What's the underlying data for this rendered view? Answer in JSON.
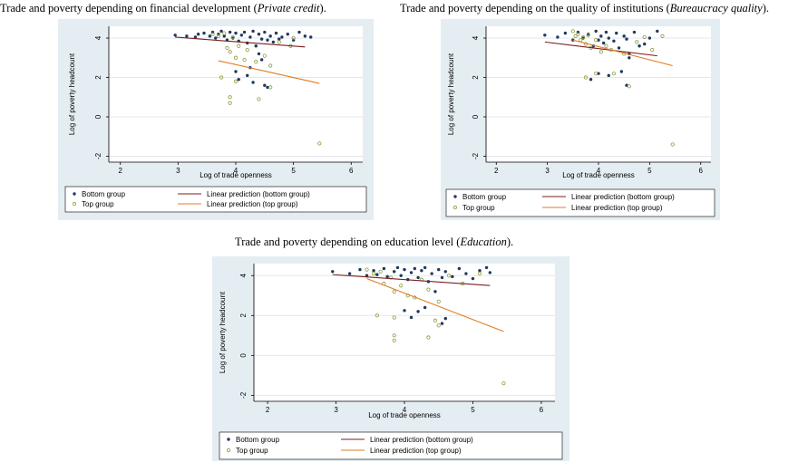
{
  "captions": [
    {
      "prefix": "Trade and poverty depending on financial development (",
      "italic": "Private credit",
      "suffix": ")."
    },
    {
      "prefix": "Trade and poverty depending on the quality of institutions (",
      "italic": "Bureaucracy quality",
      "suffix": ")."
    },
    {
      "prefix": "Trade and poverty depending on education level (",
      "italic": "Education",
      "suffix": ")."
    }
  ],
  "chart_data": [
    {
      "type": "scatter",
      "title": "Trade and poverty depending on financial development (Private credit).",
      "xlabel": "Log of trade openness",
      "ylabel": "Log of poverty headcount",
      "xlim": [
        1.8,
        6.2
      ],
      "ylim": [
        -2.3,
        4.6
      ],
      "xticks": [
        2,
        3,
        4,
        5,
        6
      ],
      "yticks": [
        -2,
        0,
        2,
        4
      ],
      "grid": "horizontal",
      "legend_position": "bottom",
      "legend": [
        "Bottom group",
        "Linear prediction (bottom group)",
        "Top group",
        "Linear prediction (top group)"
      ],
      "series": [
        {
          "name": "Bottom group",
          "marker": "filled-circle",
          "color": "#1f3a5f",
          "points": [
            [
              2.95,
              4.15
            ],
            [
              3.15,
              4.1
            ],
            [
              3.3,
              4.05
            ],
            [
              3.35,
              4.2
            ],
            [
              3.45,
              4.25
            ],
            [
              3.55,
              4.1
            ],
            [
              3.6,
              4.3
            ],
            [
              3.65,
              4.0
            ],
            [
              3.7,
              4.2
            ],
            [
              3.75,
              4.35
            ],
            [
              3.8,
              4.1
            ],
            [
              3.85,
              3.9
            ],
            [
              3.9,
              4.3
            ],
            [
              3.95,
              4.0
            ],
            [
              4.0,
              4.25
            ],
            [
              4.05,
              3.85
            ],
            [
              4.1,
              4.15
            ],
            [
              4.15,
              4.3
            ],
            [
              4.2,
              3.75
            ],
            [
              4.25,
              4.05
            ],
            [
              4.3,
              4.35
            ],
            [
              4.35,
              3.6
            ],
            [
              4.4,
              4.2
            ],
            [
              4.45,
              3.95
            ],
            [
              4.5,
              4.3
            ],
            [
              4.55,
              3.9
            ],
            [
              4.6,
              4.1
            ],
            [
              4.65,
              3.8
            ],
            [
              4.7,
              4.25
            ],
            [
              4.75,
              3.95
            ],
            [
              4.8,
              4.05
            ],
            [
              4.9,
              4.2
            ],
            [
              5.0,
              3.9
            ],
            [
              5.1,
              4.3
            ],
            [
              5.2,
              4.1
            ],
            [
              5.3,
              4.05
            ],
            [
              4.0,
              2.3
            ],
            [
              4.05,
              1.9
            ],
            [
              4.2,
              2.1
            ],
            [
              4.3,
              1.75
            ],
            [
              4.5,
              1.6
            ],
            [
              4.55,
              1.5
            ],
            [
              4.25,
              2.5
            ],
            [
              4.4,
              3.2
            ],
            [
              4.45,
              2.9
            ]
          ]
        },
        {
          "name": "Top group",
          "marker": "hollow-circle",
          "color": "#8a9a3a",
          "points": [
            [
              3.6,
              4.2
            ],
            [
              3.7,
              4.1
            ],
            [
              3.8,
              4.25
            ],
            [
              3.85,
              3.5
            ],
            [
              3.9,
              3.3
            ],
            [
              3.95,
              4.05
            ],
            [
              4.0,
              3.0
            ],
            [
              4.05,
              3.6
            ],
            [
              4.15,
              2.9
            ],
            [
              4.2,
              3.4
            ],
            [
              4.35,
              2.8
            ],
            [
              4.5,
              3.1
            ],
            [
              4.6,
              2.6
            ],
            [
              4.75,
              3.8
            ],
            [
              4.95,
              3.6
            ],
            [
              5.0,
              4.0
            ],
            [
              3.75,
              2.0
            ],
            [
              3.9,
              1.0
            ],
            [
              3.9,
              0.7
            ],
            [
              4.0,
              1.8
            ],
            [
              4.4,
              0.9
            ],
            [
              4.6,
              1.5
            ],
            [
              5.45,
              -1.35
            ]
          ]
        },
        {
          "name": "Linear prediction (bottom group)",
          "type": "line",
          "color": "#7a1f1f",
          "points": [
            [
              2.95,
              4.05
            ],
            [
              5.2,
              3.55
            ]
          ]
        },
        {
          "name": "Linear prediction (top group)",
          "type": "line",
          "color": "#e07b22",
          "points": [
            [
              3.7,
              2.85
            ],
            [
              5.45,
              1.7
            ]
          ]
        }
      ]
    },
    {
      "type": "scatter",
      "title": "Trade and poverty depending on the quality of institutions (Bureaucracy quality).",
      "xlabel": "Log of trade openness",
      "ylabel": "Log of poverty headcount",
      "xlim": [
        1.8,
        6.2
      ],
      "ylim": [
        -2.3,
        4.6
      ],
      "xticks": [
        2,
        3,
        4,
        5,
        6
      ],
      "yticks": [
        -2,
        0,
        2,
        4
      ],
      "grid": "horizontal",
      "legend_position": "bottom",
      "legend": [
        "Bottom group",
        "Linear prediction (bottom group)",
        "Top group",
        "Linear prediction (top group)"
      ],
      "series": [
        {
          "name": "Bottom group",
          "marker": "filled-circle",
          "color": "#1f3a5f",
          "points": [
            [
              2.95,
              4.15
            ],
            [
              3.2,
              4.05
            ],
            [
              3.35,
              4.25
            ],
            [
              3.5,
              3.9
            ],
            [
              3.6,
              4.3
            ],
            [
              3.7,
              4.0
            ],
            [
              3.8,
              4.2
            ],
            [
              3.9,
              3.6
            ],
            [
              3.95,
              4.35
            ],
            [
              4.0,
              3.9
            ],
            [
              4.05,
              4.1
            ],
            [
              4.1,
              3.75
            ],
            [
              4.15,
              4.3
            ],
            [
              4.2,
              4.0
            ],
            [
              4.3,
              3.85
            ],
            [
              4.35,
              4.25
            ],
            [
              4.4,
              3.5
            ],
            [
              4.5,
              4.1
            ],
            [
              4.55,
              3.95
            ],
            [
              4.6,
              3.2
            ],
            [
              4.7,
              4.3
            ],
            [
              4.8,
              3.6
            ],
            [
              4.9,
              3.7
            ],
            [
              5.0,
              4.0
            ],
            [
              5.15,
              4.35
            ],
            [
              3.85,
              1.9
            ],
            [
              4.0,
              2.2
            ],
            [
              4.2,
              2.1
            ],
            [
              4.45,
              2.3
            ],
            [
              4.55,
              1.6
            ],
            [
              4.6,
              3.0
            ]
          ]
        },
        {
          "name": "Top group",
          "marker": "hollow-circle",
          "color": "#8a9a3a",
          "points": [
            [
              3.5,
              4.35
            ],
            [
              3.55,
              4.1
            ],
            [
              3.6,
              4.2
            ],
            [
              3.65,
              3.9
            ],
            [
              3.7,
              4.05
            ],
            [
              3.75,
              3.7
            ],
            [
              3.8,
              4.15
            ],
            [
              3.85,
              3.5
            ],
            [
              3.95,
              3.9
            ],
            [
              4.05,
              3.3
            ],
            [
              4.15,
              3.6
            ],
            [
              4.25,
              3.4
            ],
            [
              4.5,
              3.2
            ],
            [
              4.75,
              3.8
            ],
            [
              4.9,
              4.05
            ],
            [
              5.05,
              3.4
            ],
            [
              5.25,
              4.1
            ],
            [
              3.75,
              2.0
            ],
            [
              3.95,
              2.2
            ],
            [
              4.3,
              2.2
            ],
            [
              4.6,
              1.55
            ],
            [
              5.45,
              -1.4
            ]
          ]
        },
        {
          "name": "Linear prediction (bottom group)",
          "type": "line",
          "color": "#7a1f1f",
          "points": [
            [
              2.95,
              3.8
            ],
            [
              5.15,
              3.1
            ]
          ]
        },
        {
          "name": "Linear prediction (top group)",
          "type": "line",
          "color": "#e07b22",
          "points": [
            [
              3.5,
              3.9
            ],
            [
              5.45,
              2.6
            ]
          ]
        }
      ]
    },
    {
      "type": "scatter",
      "title": "Trade and poverty depending on education level (Education).",
      "xlabel": "Log of trade openness",
      "ylabel": "Log of poverty headcount",
      "xlim": [
        1.8,
        6.2
      ],
      "ylim": [
        -2.3,
        4.6
      ],
      "xticks": [
        2,
        3,
        4,
        5,
        6
      ],
      "yticks": [
        -2,
        0,
        2,
        4
      ],
      "grid": "horizontal",
      "legend_position": "bottom",
      "legend": [
        "Bottom group",
        "Linear prediction (bottom group)",
        "Top group",
        "Linear prediction (top group)"
      ],
      "series": [
        {
          "name": "Bottom group",
          "marker": "filled-circle",
          "color": "#1f3a5f",
          "points": [
            [
              2.95,
              4.2
            ],
            [
              3.2,
              4.1
            ],
            [
              3.35,
              4.3
            ],
            [
              3.45,
              4.0
            ],
            [
              3.55,
              4.25
            ],
            [
              3.6,
              4.05
            ],
            [
              3.7,
              4.35
            ],
            [
              3.75,
              3.95
            ],
            [
              3.85,
              4.2
            ],
            [
              3.9,
              4.4
            ],
            [
              3.95,
              4.0
            ],
            [
              4.0,
              4.3
            ],
            [
              4.05,
              3.8
            ],
            [
              4.1,
              4.15
            ],
            [
              4.15,
              4.35
            ],
            [
              4.2,
              3.9
            ],
            [
              4.25,
              4.25
            ],
            [
              4.3,
              4.4
            ],
            [
              4.35,
              3.7
            ],
            [
              4.4,
              4.1
            ],
            [
              4.45,
              3.2
            ],
            [
              4.5,
              4.3
            ],
            [
              4.55,
              3.9
            ],
            [
              4.6,
              4.2
            ],
            [
              4.7,
              3.95
            ],
            [
              4.8,
              4.35
            ],
            [
              4.9,
              4.1
            ],
            [
              5.0,
              3.85
            ],
            [
              5.1,
              4.25
            ],
            [
              5.2,
              4.4
            ],
            [
              5.25,
              4.15
            ],
            [
              4.0,
              2.25
            ],
            [
              4.1,
              1.9
            ],
            [
              4.2,
              2.2
            ],
            [
              4.3,
              2.4
            ],
            [
              4.55,
              1.6
            ],
            [
              4.6,
              1.85
            ]
          ]
        },
        {
          "name": "Top group",
          "marker": "hollow-circle",
          "color": "#8a9a3a",
          "points": [
            [
              3.45,
              4.3
            ],
            [
              3.55,
              4.1
            ],
            [
              3.65,
              4.2
            ],
            [
              3.7,
              3.6
            ],
            [
              3.8,
              3.9
            ],
            [
              3.85,
              3.2
            ],
            [
              3.95,
              3.5
            ],
            [
              4.05,
              3.0
            ],
            [
              4.15,
              2.9
            ],
            [
              4.25,
              3.8
            ],
            [
              4.35,
              3.3
            ],
            [
              4.5,
              2.7
            ],
            [
              4.65,
              4.0
            ],
            [
              4.85,
              3.6
            ],
            [
              5.1,
              4.1
            ],
            [
              3.6,
              2.0
            ],
            [
              3.85,
              1.9
            ],
            [
              3.85,
              1.0
            ],
            [
              3.85,
              0.75
            ],
            [
              4.35,
              0.9
            ],
            [
              4.45,
              1.75
            ],
            [
              4.5,
              1.5
            ],
            [
              5.45,
              -1.4
            ]
          ]
        },
        {
          "name": "Linear prediction (bottom group)",
          "type": "line",
          "color": "#7a1f1f",
          "points": [
            [
              2.95,
              4.05
            ],
            [
              5.25,
              3.5
            ]
          ]
        },
        {
          "name": "Linear prediction (top group)",
          "type": "line",
          "color": "#e07b22",
          "points": [
            [
              3.45,
              3.85
            ],
            [
              5.45,
              1.2
            ]
          ]
        }
      ]
    }
  ]
}
